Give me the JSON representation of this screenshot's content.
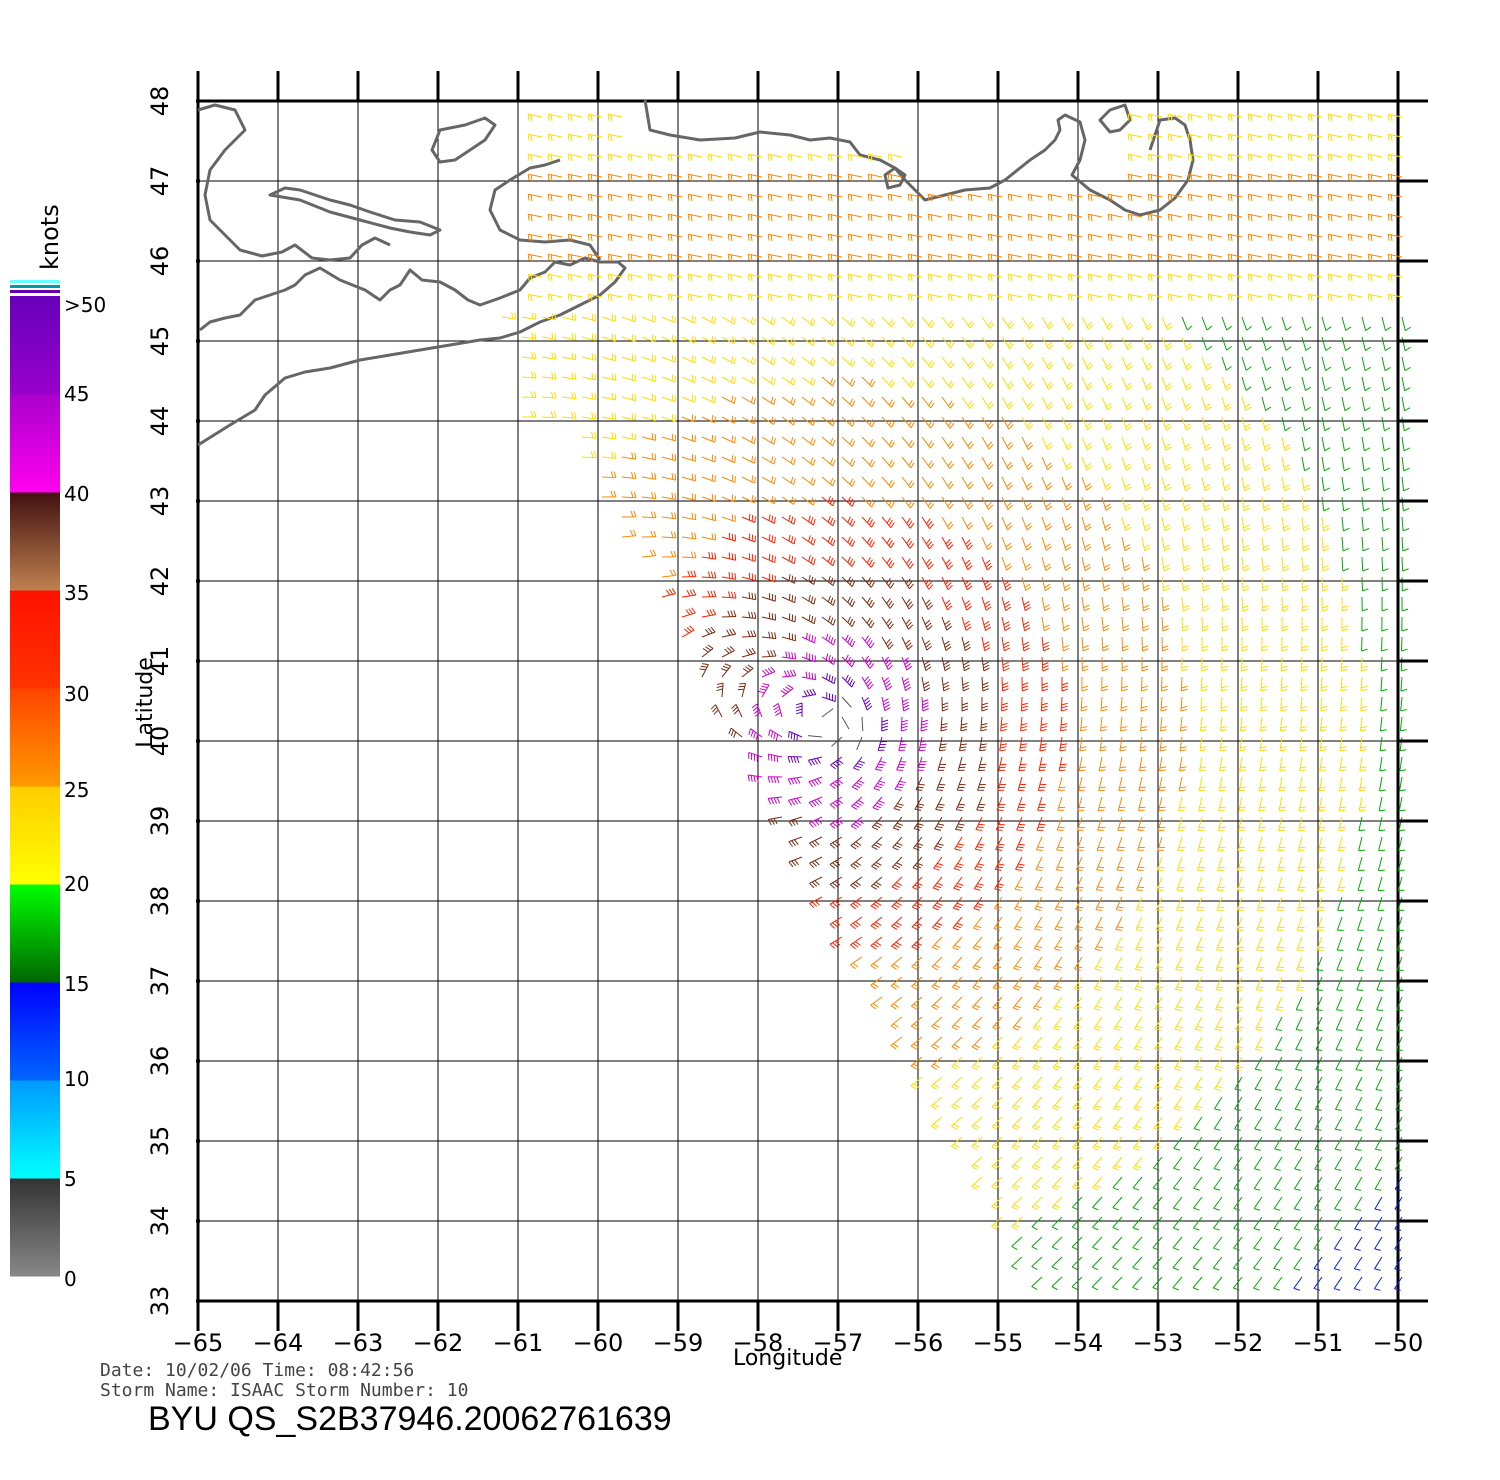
{
  "map": {
    "x_axis_label": "Longitude",
    "y_axis_label": "Latitude",
    "lon_ticks": [
      "−65",
      "−64",
      "−63",
      "−62",
      "−61",
      "−60",
      "−59",
      "−58",
      "−57",
      "−56",
      "−55",
      "−54",
      "−53",
      "−52",
      "−51",
      "−50"
    ],
    "lat_ticks": [
      "33",
      "34",
      "35",
      "36",
      "37",
      "38",
      "39",
      "40",
      "41",
      "42",
      "43",
      "44",
      "45",
      "46",
      "47",
      "48"
    ],
    "lon_range": [
      -65,
      -50
    ],
    "lat_range": [
      33,
      48
    ],
    "storm_center": {
      "lon": -57.0,
      "lat": 40.2
    },
    "coastline_color": "#666666",
    "grid_color": "#000000"
  },
  "colorbar": {
    "unit_label": "knots",
    "labels": [
      ">50",
      "45",
      "40",
      "35",
      "30",
      "25",
      "20",
      "15",
      "10",
      "5",
      "0"
    ],
    "bands": [
      {
        "range": [
          0,
          5
        ],
        "colors": [
          "#888888",
          "#333333"
        ]
      },
      {
        "range": [
          5,
          10
        ],
        "colors": [
          "#00ffff",
          "#0099ff"
        ]
      },
      {
        "range": [
          10,
          15
        ],
        "colors": [
          "#0066ff",
          "#0000ff"
        ]
      },
      {
        "range": [
          15,
          20
        ],
        "colors": [
          "#006600",
          "#00ff00"
        ]
      },
      {
        "range": [
          20,
          25
        ],
        "colors": [
          "#ffff00",
          "#ffcc00"
        ]
      },
      {
        "range": [
          25,
          30
        ],
        "colors": [
          "#ff9900",
          "#ff4400"
        ]
      },
      {
        "range": [
          30,
          35
        ],
        "colors": [
          "#ff3300",
          "#ff1100"
        ]
      },
      {
        "range": [
          35,
          40
        ],
        "colors": [
          "#c08050",
          "#401010"
        ]
      },
      {
        "range": [
          40,
          45
        ],
        "colors": [
          "#ff00ee",
          "#aa00cc"
        ]
      },
      {
        "range": [
          45,
          50
        ],
        "colors": [
          "#9900cc",
          "#6600bb"
        ]
      }
    ]
  },
  "caption": {
    "line1": "Date: 10/02/06   Time: 08:42:56",
    "line2": "Storm  Name: ISAAC   Storm  Number: 10",
    "product_id": "BYU  QS_S2B37946.20062761639"
  }
}
